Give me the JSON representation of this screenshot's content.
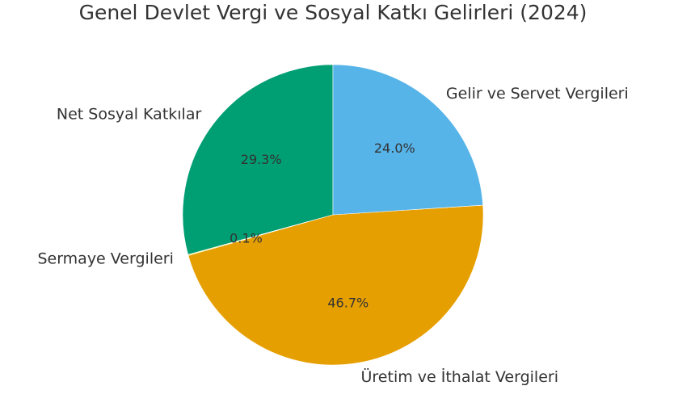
{
  "chart_data": {
    "type": "pie",
    "title": "Genel Devlet Vergi ve Sosyal Katkı Gelirleri (2024)",
    "slices": [
      {
        "label": "Net Sosyal Katkılar",
        "value": 29.3,
        "pct_label": "29.3%",
        "color": "#009e73"
      },
      {
        "label": "Sermaye Vergileri",
        "value": 0.1,
        "pct_label": "0.1%",
        "color": "#f0e442"
      },
      {
        "label": "Üretim ve İthalat Vergileri",
        "value": 46.7,
        "pct_label": "46.7%",
        "color": "#e69f00"
      },
      {
        "label": "Gelir ve Servet Vergileri",
        "value": 24.0,
        "pct_label": "24.0%",
        "color": "#56b4e9"
      }
    ],
    "start_angle": 90,
    "direction": "counterclockwise",
    "legend": "none"
  }
}
